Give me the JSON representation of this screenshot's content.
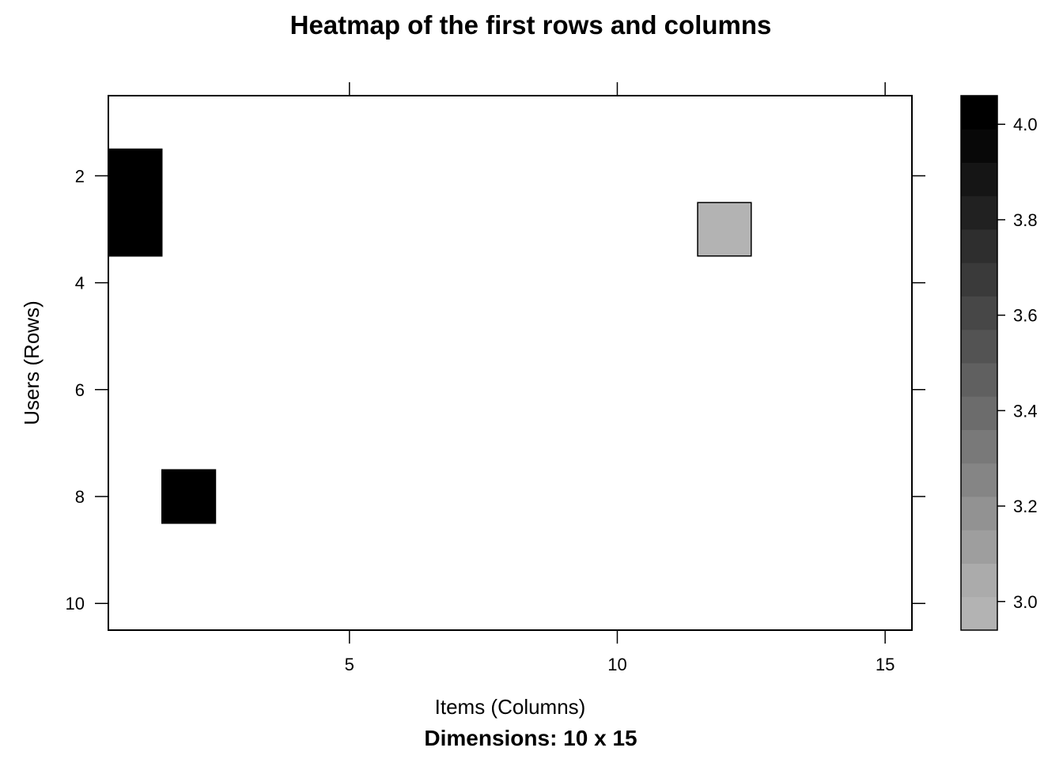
{
  "chart_data": {
    "type": "heatmap",
    "title": "Heatmap of the first rows and columns",
    "xlabel": "Items (Columns)",
    "ylabel": "Users (Rows)",
    "subtitle": "Dimensions: 10 x 15",
    "x_range": [
      0.5,
      15.5
    ],
    "y_range": [
      0.5,
      10.5
    ],
    "x_ticks": [
      5,
      10,
      15
    ],
    "y_ticks": [
      2,
      4,
      6,
      8,
      10
    ],
    "y_reversed": true,
    "cells": [
      {
        "row": 2,
        "col": 1,
        "value": 4.0
      },
      {
        "row": 3,
        "col": 1,
        "value": 4.0
      },
      {
        "row": 3,
        "col": 12,
        "value": 3.0
      },
      {
        "row": 8,
        "col": 2,
        "value": 4.0
      }
    ],
    "colorbar": {
      "range": [
        2.94,
        4.06
      ],
      "ticks": [
        "3.0",
        "3.2",
        "3.4",
        "3.6",
        "3.8",
        "4.0"
      ],
      "low_color": "#b3b3b3",
      "high_color": "#000000",
      "steps": 16
    }
  }
}
